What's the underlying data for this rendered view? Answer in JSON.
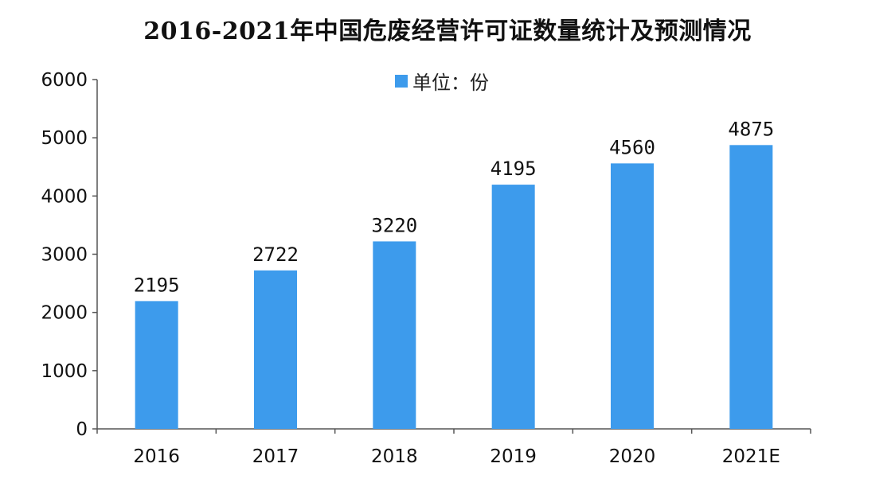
{
  "colors": {
    "bar": "#3d9bec",
    "axis": "#555555"
  },
  "chart_data": {
    "type": "bar",
    "title": "2016-2021年中国危废经营许可证数量统计及预测情况",
    "legend": [
      "单位：份"
    ],
    "legend_position": "top-center",
    "categories": [
      "2016",
      "2017",
      "2018",
      "2019",
      "2020",
      "2021E"
    ],
    "series": [
      {
        "name": "单位：份",
        "values": [
          2195,
          2722,
          3220,
          4195,
          4560,
          4875
        ]
      }
    ],
    "data_labels": [
      "2195",
      "2722",
      "3220",
      "4195",
      "4560",
      "4875"
    ],
    "y_ticks": [
      0,
      1000,
      2000,
      3000,
      4000,
      5000,
      6000
    ],
    "ylim": [
      0,
      6000
    ],
    "grid": false,
    "xlabel": "",
    "ylabel": ""
  }
}
